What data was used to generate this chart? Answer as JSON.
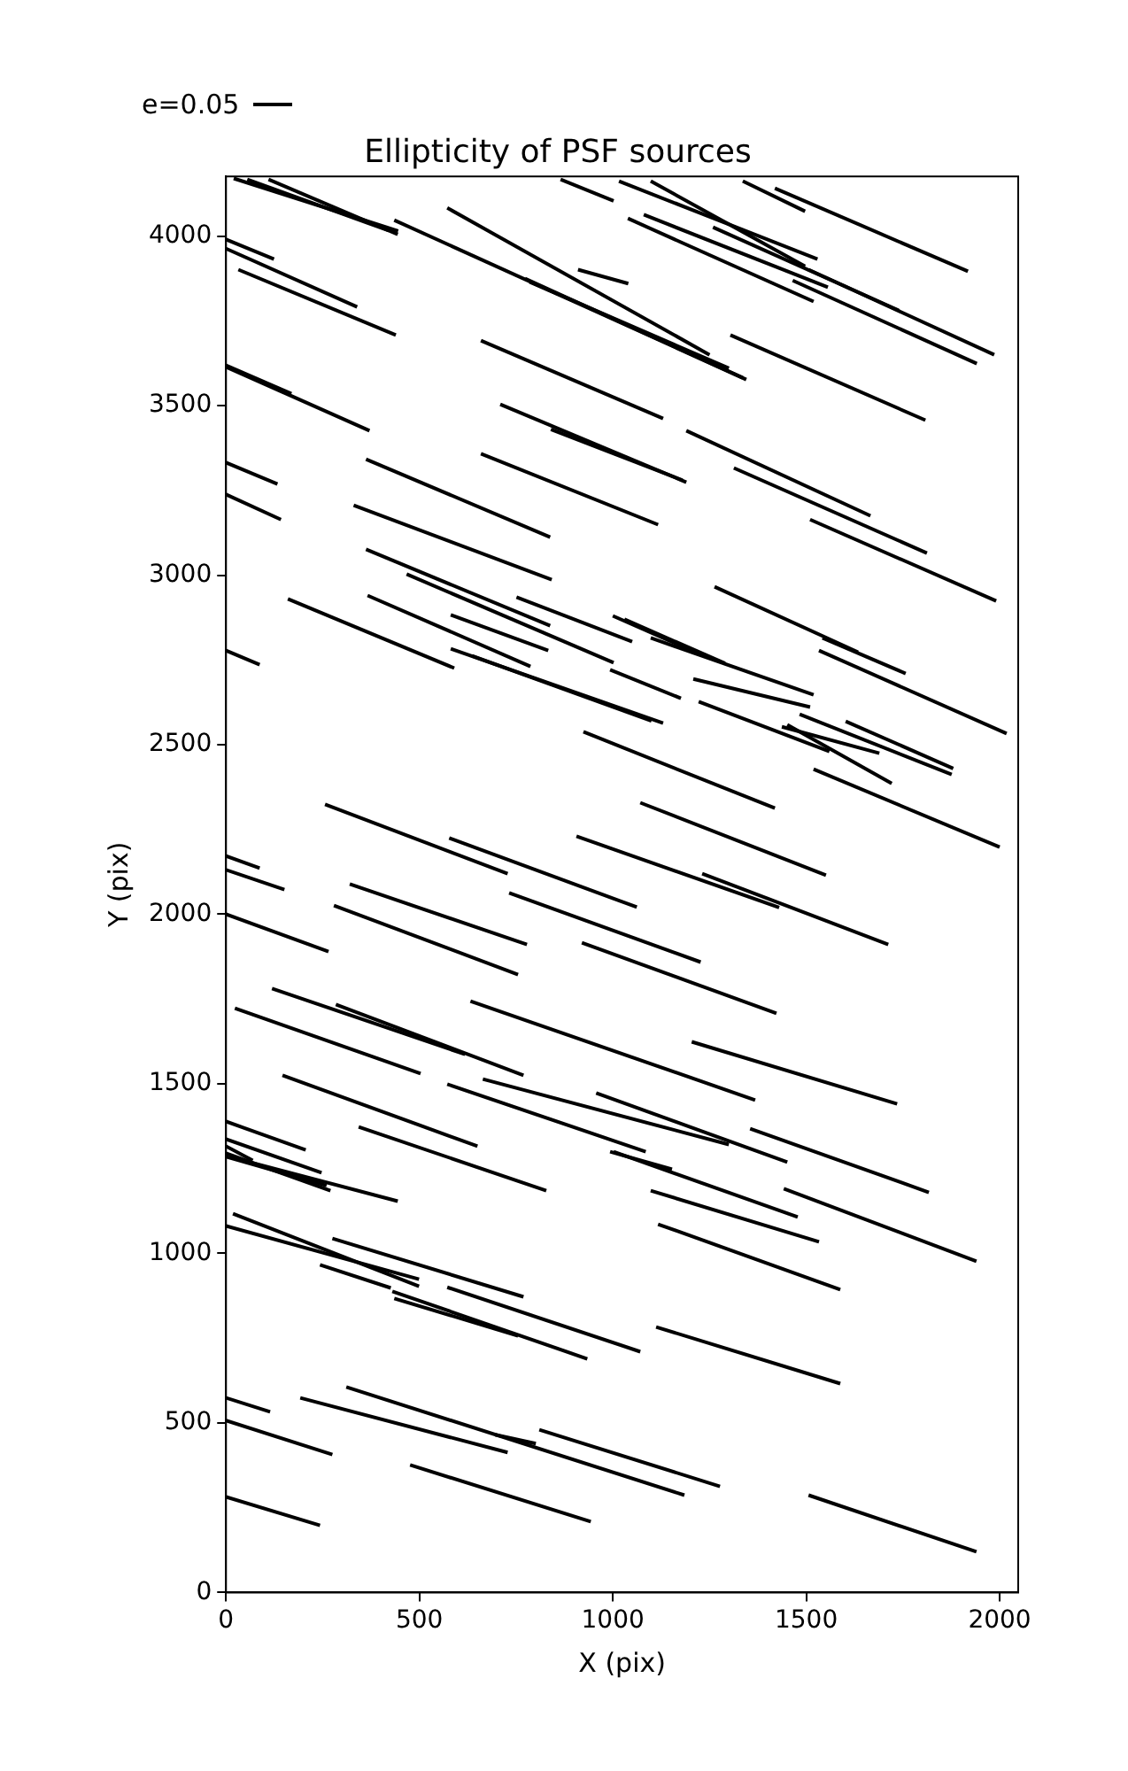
{
  "chart_data": {
    "type": "line",
    "title": "Ellipticity of PSF sources",
    "xlabel": "X (pix)",
    "ylabel": "Y (pix)",
    "annotations": [
      "e=0.05"
    ],
    "xlim": [
      0,
      2048
    ],
    "ylim": [
      0,
      4176
    ],
    "xticks": [
      0,
      500,
      1000,
      1500,
      2000
    ],
    "yticks": [
      0,
      500,
      1000,
      1500,
      2000,
      2500,
      3000,
      3500,
      4000
    ],
    "grid": false,
    "marker": "none",
    "line_style": "solid",
    "series": [
      {
        "color": "#000000",
        "x": [
          20,
          445
        ],
        "values": [
          4170,
          4015
        ]
      },
      {
        "color": "#000000",
        "x": [
          55,
          421
        ],
        "values": [
          4167,
          4016
        ]
      },
      {
        "color": "#000000",
        "x": [
          110,
          444
        ],
        "values": [
          4167,
          4005
        ]
      },
      {
        "color": "#000000",
        "x": [
          0,
          124
        ],
        "values": [
          3990,
          3932
        ]
      },
      {
        "color": "#000000",
        "x": [
          0,
          339
        ],
        "values": [
          3963,
          3791
        ]
      },
      {
        "color": "#000000",
        "x": [
          32,
          439
        ],
        "values": [
          3901,
          3708
        ]
      },
      {
        "color": "#000000",
        "x": [
          435,
          1345
        ],
        "values": [
          4047,
          3577
        ]
      },
      {
        "color": "#000000",
        "x": [
          572,
          1250
        ],
        "values": [
          4083,
          3650
        ]
      },
      {
        "color": "#000000",
        "x": [
          865,
          1002
        ],
        "values": [
          4167,
          4104
        ]
      },
      {
        "color": "#000000",
        "x": [
          910,
          1040
        ],
        "values": [
          3901,
          3860
        ]
      },
      {
        "color": "#000000",
        "x": [
          773,
          1336
        ],
        "values": [
          3875,
          3582
        ]
      },
      {
        "color": "#000000",
        "x": [
          785,
          1300
        ],
        "values": [
          3865,
          3610
        ]
      },
      {
        "color": "#000000",
        "x": [
          0,
          169
        ],
        "values": [
          3619,
          3535
        ]
      },
      {
        "color": "#000000",
        "x": [
          0,
          371
        ],
        "values": [
          3614,
          3426
        ]
      },
      {
        "color": "#000000",
        "x": [
          659,
          1130
        ],
        "values": [
          3692,
          3462
        ]
      },
      {
        "color": "#000000",
        "x": [
          709,
          1190
        ],
        "values": [
          3504,
          3274
        ]
      },
      {
        "color": "#000000",
        "x": [
          840,
          1180
        ],
        "values": [
          3430,
          3280
        ]
      },
      {
        "color": "#000000",
        "x": [
          659,
          1117
        ],
        "values": [
          3358,
          3149
        ]
      },
      {
        "color": "#000000",
        "x": [
          0,
          133
        ],
        "values": [
          3332,
          3269
        ]
      },
      {
        "color": "#000000",
        "x": [
          0,
          142
        ],
        "values": [
          3238,
          3164
        ]
      },
      {
        "color": "#000000",
        "x": [
          362,
          838
        ],
        "values": [
          3342,
          3112
        ]
      },
      {
        "color": "#000000",
        "x": [
          330,
          842
        ],
        "values": [
          3206,
          2987
        ]
      },
      {
        "color": "#000000",
        "x": [
          362,
          838
        ],
        "values": [
          3076,
          2851
        ]
      },
      {
        "color": "#000000",
        "x": [
          467,
          1002
        ],
        "values": [
          3003,
          2742
        ]
      },
      {
        "color": "#000000",
        "x": [
          160,
          590
        ],
        "values": [
          2930,
          2726
        ]
      },
      {
        "color": "#000000",
        "x": [
          366,
          787
        ],
        "values": [
          2940,
          2731
        ]
      },
      {
        "color": "#000000",
        "x": [
          751,
          1050
        ],
        "values": [
          2935,
          2804
        ]
      },
      {
        "color": "#000000",
        "x": [
          581,
          833
        ],
        "values": [
          2883,
          2778
        ]
      },
      {
        "color": "#000000",
        "x": [
          1016,
          1529
        ],
        "values": [
          4162,
          3932
        ]
      },
      {
        "color": "#000000",
        "x": [
          1098,
          1497
        ],
        "values": [
          4162,
          3911
        ]
      },
      {
        "color": "#000000",
        "x": [
          1336,
          1497
        ],
        "values": [
          4162,
          4073
        ]
      },
      {
        "color": "#000000",
        "x": [
          1419,
          1918
        ],
        "values": [
          4141,
          3896
        ]
      },
      {
        "color": "#000000",
        "x": [
          1039,
          1519
        ],
        "values": [
          4052,
          3807
        ]
      },
      {
        "color": "#000000",
        "x": [
          1080,
          1556
        ],
        "values": [
          4063,
          3849
        ]
      },
      {
        "color": "#000000",
        "x": [
          1259,
          1739
        ],
        "values": [
          4026,
          3781
        ]
      },
      {
        "color": "#000000",
        "x": [
          1506,
          1986
        ],
        "values": [
          3901,
          3650
        ]
      },
      {
        "color": "#000000",
        "x": [
          1465,
          1941
        ],
        "values": [
          3869,
          3624
        ]
      },
      {
        "color": "#000000",
        "x": [
          1304,
          1808
        ],
        "values": [
          3708,
          3457
        ]
      },
      {
        "color": "#000000",
        "x": [
          1190,
          1666
        ],
        "values": [
          3426,
          3175
        ]
      },
      {
        "color": "#000000",
        "x": [
          1313,
          1812
        ],
        "values": [
          3316,
          3065
        ]
      },
      {
        "color": "#000000",
        "x": [
          1510,
          1991
        ],
        "values": [
          3164,
          2924
        ]
      },
      {
        "color": "#000000",
        "x": [
          1263,
          1634
        ],
        "values": [
          2966,
          2773
        ]
      },
      {
        "color": "#000000",
        "x": [
          0,
          87
        ],
        "values": [
          2778,
          2736
        ]
      },
      {
        "color": "#000000",
        "x": [
          581,
          1130
        ],
        "values": [
          2783,
          2564
        ]
      },
      {
        "color": "#000000",
        "x": [
          636,
          1100
        ],
        "values": [
          2762,
          2570
        ]
      },
      {
        "color": "#000000",
        "x": [
          924,
          1419
        ],
        "values": [
          2538,
          2313
        ]
      },
      {
        "color": "#000000",
        "x": [
          1000,
          1220
        ],
        "values": [
          2880,
          2770
        ]
      },
      {
        "color": "#000000",
        "x": [
          1030,
          1290
        ],
        "values": [
          2870,
          2740
        ]
      },
      {
        "color": "#000000",
        "x": [
          1098,
          1519
        ],
        "values": [
          2815,
          2647
        ]
      },
      {
        "color": "#000000",
        "x": [
          993,
          1176
        ],
        "values": [
          2721,
          2637
        ]
      },
      {
        "color": "#000000",
        "x": [
          1208,
          1510
        ],
        "values": [
          2694,
          2611
        ]
      },
      {
        "color": "#000000",
        "x": [
          1222,
          1560
        ],
        "values": [
          2627,
          2480
        ]
      },
      {
        "color": "#000000",
        "x": [
          1451,
          1721
        ],
        "values": [
          2559,
          2386
        ]
      },
      {
        "color": "#000000",
        "x": [
          1437,
          1689
        ],
        "values": [
          2553,
          2475
        ]
      },
      {
        "color": "#000000",
        "x": [
          1483,
          1876
        ],
        "values": [
          2590,
          2412
        ]
      },
      {
        "color": "#000000",
        "x": [
          1602,
          1880
        ],
        "values": [
          2569,
          2430
        ]
      },
      {
        "color": "#000000",
        "x": [
          1519,
          2000
        ],
        "values": [
          2428,
          2198
        ]
      },
      {
        "color": "#000000",
        "x": [
          1533,
          2018
        ],
        "values": [
          2778,
          2533
        ]
      },
      {
        "color": "#000000",
        "x": [
          1542,
          1757
        ],
        "values": [
          2815,
          2710
        ]
      },
      {
        "color": "#000000",
        "x": [
          256,
          728
        ],
        "values": [
          2324,
          2120
        ]
      },
      {
        "color": "#000000",
        "x": [
          577,
          1062
        ],
        "values": [
          2225,
          2021
        ]
      },
      {
        "color": "#000000",
        "x": [
          906,
          1430
        ],
        "values": [
          2230,
          2020
        ]
      },
      {
        "color": "#000000",
        "x": [
          1231,
          1712
        ],
        "values": [
          2120,
          1911
        ]
      },
      {
        "color": "#000000",
        "x": [
          1071,
          1551
        ],
        "values": [
          2329,
          2115
        ]
      },
      {
        "color": "#000000",
        "x": [
          0,
          87
        ],
        "values": [
          2172,
          2136
        ]
      },
      {
        "color": "#000000",
        "x": [
          0,
          151
        ],
        "values": [
          2131,
          2073
        ]
      },
      {
        "color": "#000000",
        "x": [
          320,
          778
        ],
        "values": [
          2089,
          1911
        ]
      },
      {
        "color": "#000000",
        "x": [
          279,
          755
        ],
        "values": [
          2026,
          1822
        ]
      },
      {
        "color": "#000000",
        "x": [
          0,
          265
        ],
        "values": [
          2000,
          1890
        ]
      },
      {
        "color": "#000000",
        "x": [
          732,
          1227
        ],
        "values": [
          2063,
          1859
        ]
      },
      {
        "color": "#000000",
        "x": [
          920,
          1423
        ],
        "values": [
          1916,
          1708
        ]
      },
      {
        "color": "#000000",
        "x": [
          119,
          618
        ],
        "values": [
          1781,
          1587
        ]
      },
      {
        "color": "#000000",
        "x": [
          23,
          503
        ],
        "values": [
          1723,
          1530
        ]
      },
      {
        "color": "#000000",
        "x": [
          284,
          769
        ],
        "values": [
          1734,
          1525
        ]
      },
      {
        "color": "#000000",
        "x": [
          632,
          1368
        ],
        "values": [
          1744,
          1452
        ]
      },
      {
        "color": "#000000",
        "x": [
          1204,
          1735
        ],
        "values": [
          1624,
          1441
        ]
      },
      {
        "color": "#000000",
        "x": [
          146,
          650
        ],
        "values": [
          1525,
          1316
        ]
      },
      {
        "color": "#000000",
        "x": [
          572,
          1085
        ],
        "values": [
          1499,
          1300
        ]
      },
      {
        "color": "#000000",
        "x": [
          664,
          1300
        ],
        "values": [
          1514,
          1321
        ]
      },
      {
        "color": "#000000",
        "x": [
          957,
          1451
        ],
        "values": [
          1473,
          1269
        ]
      },
      {
        "color": "#000000",
        "x": [
          1355,
          1817
        ],
        "values": [
          1368,
          1180
        ]
      },
      {
        "color": "#000000",
        "x": [
          993,
          1153
        ],
        "values": [
          1300,
          1248
        ]
      },
      {
        "color": "#000000",
        "x": [
          1002,
          1478
        ],
        "values": [
          1300,
          1107
        ]
      },
      {
        "color": "#000000",
        "x": [
          1442,
          1940
        ],
        "values": [
          1191,
          977
        ]
      },
      {
        "color": "#000000",
        "x": [
          1098,
          1533
        ],
        "values": [
          1185,
          1034
        ]
      },
      {
        "color": "#000000",
        "x": [
          1117,
          1588
        ],
        "values": [
          1086,
          893
        ]
      },
      {
        "color": "#000000",
        "x": [
          1112,
          1588
        ],
        "values": [
          783,
          616
        ]
      },
      {
        "color": "#000000",
        "x": [
          1506,
          1940
        ],
        "values": [
          287,
          120
        ]
      },
      {
        "color": "#000000",
        "x": [
          0,
          206
        ],
        "values": [
          1389,
          1305
        ]
      },
      {
        "color": "#000000",
        "x": [
          0,
          247
        ],
        "values": [
          1337,
          1238
        ]
      },
      {
        "color": "#000000",
        "x": [
          0,
          69
        ],
        "values": [
          1316,
          1274
        ]
      },
      {
        "color": "#000000",
        "x": [
          0,
          270
        ],
        "values": [
          1295,
          1185
        ]
      },
      {
        "color": "#000000",
        "x": [
          0,
          260
        ],
        "values": [
          1285,
          1200
        ]
      },
      {
        "color": "#000000",
        "x": [
          9,
          444
        ],
        "values": [
          1285,
          1154
        ]
      },
      {
        "color": "#000000",
        "x": [
          343,
          828
        ],
        "values": [
          1373,
          1185
        ]
      },
      {
        "color": "#000000",
        "x": [
          18,
          499
        ],
        "values": [
          1117,
          903
        ]
      },
      {
        "color": "#000000",
        "x": [
          0,
          499
        ],
        "values": [
          1081,
          924
        ]
      },
      {
        "color": "#000000",
        "x": [
          243,
          426
        ],
        "values": [
          966,
          898
        ]
      },
      {
        "color": "#000000",
        "x": [
          275,
          769
        ],
        "values": [
          1044,
          872
        ]
      },
      {
        "color": "#000000",
        "x": [
          572,
          1071
        ],
        "values": [
          900,
          710
        ]
      },
      {
        "color": "#000000",
        "x": [
          435,
          755
        ],
        "values": [
          867,
          757
        ]
      },
      {
        "color": "#000000",
        "x": [
          430,
          934
        ],
        "values": [
          888,
          689
        ]
      },
      {
        "color": "#000000",
        "x": [
          0,
          114
        ],
        "values": [
          574,
          533
        ]
      },
      {
        "color": "#000000",
        "x": [
          0,
          275
        ],
        "values": [
          507,
          407
        ]
      },
      {
        "color": "#000000",
        "x": [
          192,
          728
        ],
        "values": [
          574,
          413
        ]
      },
      {
        "color": "#000000",
        "x": [
          311,
          1185
        ],
        "values": [
          606,
          287
        ]
      },
      {
        "color": "#000000",
        "x": [
          810,
          1277
        ],
        "values": [
          480,
          313
        ]
      },
      {
        "color": "#000000",
        "x": [
          696,
          801
        ],
        "values": [
          465,
          439
        ]
      },
      {
        "color": "#000000",
        "x": [
          476,
          943
        ],
        "values": [
          376,
          209
        ]
      },
      {
        "color": "#000000",
        "x": [
          0,
          243
        ],
        "values": [
          282,
          198
        ]
      }
    ]
  }
}
